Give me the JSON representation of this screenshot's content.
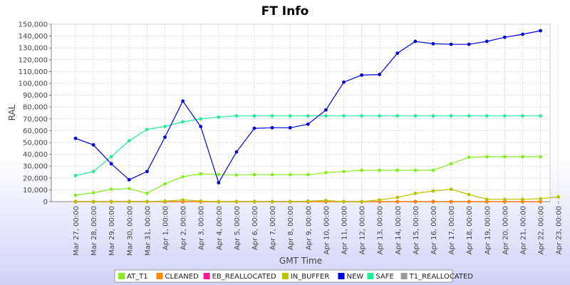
{
  "chart_data": {
    "type": "line",
    "title": "FT Info",
    "xlabel": "GMT Time",
    "ylabel": "RAL",
    "ylim": [
      0,
      150000
    ],
    "yticks": [
      "0",
      "10,000",
      "20,000",
      "30,000",
      "40,000",
      "50,000",
      "60,000",
      "70,000",
      "80,000",
      "90,000",
      "100,000",
      "110,000",
      "120,000",
      "130,000",
      "140,000",
      "150,000"
    ],
    "ytick_values": [
      0,
      10000,
      20000,
      30000,
      40000,
      50000,
      60000,
      70000,
      80000,
      90000,
      100000,
      110000,
      120000,
      130000,
      140000,
      150000
    ],
    "x_ticks": [
      "Mar 27, 00:00",
      "Mar 28, 00:00",
      "Mar 29, 00:00",
      "Mar 30, 00:00",
      "Mar 31, 00:00",
      "Apr 1, 00:00",
      "Apr 2, 00:00",
      "Apr 3, 00:00",
      "Apr 4, 00:00",
      "Apr 5, 00:00",
      "Apr 6, 00:00",
      "Apr 7, 00:00",
      "Apr 8, 00:00",
      "Apr 9, 00:00",
      "Apr 10, 00:00",
      "Apr 11, 00:00",
      "Apr 12, 00:00",
      "Apr 13, 00:00",
      "Apr 14, 00:00",
      "Apr 15, 00:00",
      "Apr 16, 00:00",
      "Apr 17, 00:00",
      "Apr 18, 00:00",
      "Apr 19, 00:00",
      "Apr 20, 00:00",
      "Apr 21, 00:00",
      "Apr 22, 00:00",
      "Apr 23, 00:00"
    ],
    "grid": true,
    "legend_position": "bottom",
    "series": [
      {
        "name": "AT_T1",
        "color": "#88ee22",
        "values": [
          5500,
          7500,
          10500,
          11000,
          7000,
          15000,
          21000,
          23500,
          23000,
          22500,
          22800,
          22800,
          22800,
          22800,
          24500,
          25500,
          26500,
          26500,
          26500,
          26500,
          26500,
          32000,
          37500,
          38000,
          38000,
          38000,
          38000
        ]
      },
      {
        "name": "CLEANED",
        "color": "#ff8800",
        "values": [
          0,
          0,
          0,
          0,
          0,
          0,
          0,
          0,
          0,
          0,
          0,
          0,
          0,
          0,
          0,
          0,
          0,
          0,
          0,
          0,
          0,
          0,
          0,
          0,
          0,
          0,
          0
        ]
      },
      {
        "name": "EB_REALLOCATED",
        "color": "#ff1493",
        "values": [
          0,
          0,
          0,
          0,
          0,
          0,
          0,
          0,
          0,
          0,
          0,
          0,
          0,
          0,
          0,
          0,
          0,
          0,
          0,
          0,
          0,
          0,
          0,
          0,
          0,
          0,
          0
        ]
      },
      {
        "name": "IN_BUFFER",
        "color": "#b8c400",
        "values": [
          0,
          0,
          0,
          0,
          0,
          500,
          1500,
          500,
          0,
          0,
          0,
          0,
          0,
          500,
          1000,
          0,
          0,
          1500,
          3500,
          7000,
          9000,
          10500,
          6000,
          2000,
          2000,
          2000,
          2500,
          4000
        ]
      },
      {
        "name": "NEW",
        "color": "#0000dd",
        "values": [
          53500,
          48000,
          32000,
          18500,
          25500,
          54500,
          85000,
          63500,
          16000,
          42000,
          62000,
          62500,
          62500,
          65500,
          77500,
          101000,
          107000,
          107500,
          125500,
          135500,
          133500,
          133000,
          133000,
          135500,
          139000,
          141500,
          144500
        ]
      },
      {
        "name": "SAFE",
        "color": "#22ee99",
        "values": [
          22000,
          25500,
          38000,
          51500,
          61000,
          63500,
          67500,
          70000,
          71500,
          72500,
          72500,
          72500,
          72500,
          72500,
          72500,
          72500,
          72500,
          72500,
          72500,
          72500,
          72500,
          72500,
          72500,
          72500,
          72500,
          72500,
          72500
        ]
      },
      {
        "name": "T1_REALLOCATED",
        "color": "#999999",
        "values": [
          0,
          0,
          0,
          0,
          0,
          0,
          0,
          0,
          0,
          0,
          0,
          0,
          0,
          0,
          0,
          0,
          0,
          0,
          0,
          0,
          0,
          0,
          0,
          0,
          0,
          0,
          0
        ]
      }
    ]
  }
}
